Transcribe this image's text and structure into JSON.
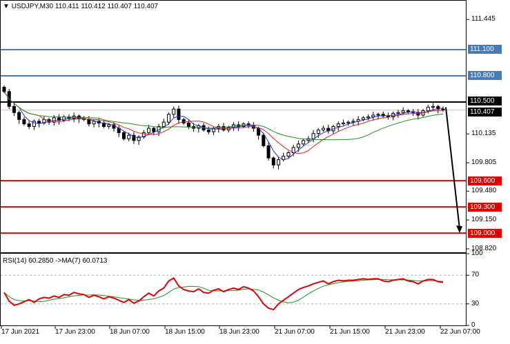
{
  "header": {
    "symbol": "USDJPY,M30",
    "ohlc": "110.411 110.412 110.407 110.407"
  },
  "rsi_header": {
    "text": "RSI(14) 60.2850   ->MA(7) 60.0713"
  },
  "price_axis": {
    "labels": [
      {
        "value": 111.445,
        "text": "111.445"
      },
      {
        "value": 110.135,
        "text": "110.135"
      },
      {
        "value": 109.805,
        "text": "109.805"
      },
      {
        "value": 109.48,
        "text": "109.480"
      },
      {
        "value": 109.15,
        "text": "109.150"
      },
      {
        "value": 108.82,
        "text": "108.820"
      }
    ],
    "tags": [
      {
        "value": 111.1,
        "text": "111.100",
        "color": "#4a7ab5"
      },
      {
        "value": 110.8,
        "text": "110.800",
        "color": "#4a7ab5"
      },
      {
        "value": 110.5,
        "text": "110.500",
        "color": "#000000"
      },
      {
        "value": 110.407,
        "text": "110.407",
        "color": "#000000"
      },
      {
        "value": 109.6,
        "text": "109.600",
        "color": "#e00000"
      },
      {
        "value": 109.3,
        "text": "109.300",
        "color": "#e00000"
      },
      {
        "value": 109.0,
        "text": "109.000",
        "color": "#e00000"
      }
    ]
  },
  "rsi_axis": {
    "labels": [
      {
        "value": 100,
        "text": "100"
      },
      {
        "value": 70,
        "text": "70"
      },
      {
        "value": 30,
        "text": "30"
      },
      {
        "value": 0,
        "text": "0"
      }
    ]
  },
  "time_axis": {
    "labels": [
      "17 Jun 2021",
      "17 Jun 23:00",
      "18 Jun 07:00",
      "18 Jun 15:00",
      "18 Jun 23:00",
      "21 Jun 07:00",
      "21 Jun 15:00",
      "21 Jun 23:00",
      "22 Jun 07:00"
    ]
  },
  "colors": {
    "resistance": "#4a7ab5",
    "pivot": "#000000",
    "support": "#e00000",
    "ma_fast": "#2030d0",
    "ma_mid": "#e02020",
    "ma_slow": "#209020",
    "rsi": "#e00000",
    "rsi_ma": "#209020"
  },
  "chart_data": {
    "type": "candlestick",
    "symbol": "USDJPY",
    "timeframe": "M30",
    "ylim": [
      108.78,
      111.66
    ],
    "levels": [
      111.1,
      110.8,
      110.5,
      109.6,
      109.3,
      109.0
    ],
    "current_price": 110.407,
    "close": [
      110.62,
      110.45,
      110.38,
      110.3,
      110.25,
      110.22,
      110.28,
      110.26,
      110.3,
      110.27,
      110.32,
      110.29,
      110.33,
      110.31,
      110.34,
      110.31,
      110.3,
      110.25,
      110.28,
      110.26,
      110.22,
      110.24,
      110.2,
      110.15,
      110.08,
      110.12,
      110.06,
      110.1,
      110.15,
      110.2,
      110.16,
      110.22,
      110.27,
      110.36,
      110.42,
      110.3,
      110.26,
      110.22,
      110.2,
      110.23,
      110.18,
      110.16,
      110.2,
      110.22,
      110.18,
      110.21,
      110.24,
      110.22,
      110.25,
      110.23,
      110.2,
      110.12,
      110.0,
      109.86,
      109.78,
      109.84,
      109.88,
      109.92,
      109.98,
      110.02,
      110.06,
      110.08,
      110.14,
      110.18,
      110.2,
      110.17,
      110.22,
      110.25,
      110.26,
      110.27,
      110.28,
      110.3,
      110.32,
      110.33,
      110.35,
      110.36,
      110.34,
      110.33,
      110.37,
      110.38,
      110.4,
      110.39,
      110.38,
      110.35,
      110.4,
      110.44,
      110.45,
      110.42,
      110.41
    ],
    "projection": {
      "from": 110.44,
      "to": 109.0
    },
    "rsi": {
      "ylim": [
        0,
        100
      ],
      "levels": [
        70,
        30
      ],
      "last": 60.285,
      "ma_period": 7,
      "ma_last": 60.0713,
      "values": [
        46,
        34,
        28,
        30,
        33,
        36,
        32,
        37,
        39,
        38,
        41,
        39,
        43,
        42,
        46,
        44,
        43,
        39,
        42,
        40,
        37,
        40,
        38,
        35,
        32,
        36,
        31,
        34,
        40,
        45,
        41,
        48,
        52,
        62,
        66,
        55,
        50,
        48,
        47,
        51,
        46,
        45,
        49,
        51,
        47,
        50,
        52,
        50,
        54,
        52,
        48,
        40,
        30,
        24,
        22,
        30,
        35,
        40,
        45,
        50,
        53,
        55,
        58,
        60,
        62,
        58,
        61,
        63,
        62,
        63,
        63,
        64,
        65,
        64,
        65,
        65,
        62,
        61,
        63,
        64,
        65,
        62,
        61,
        58,
        62,
        64,
        64,
        61,
        60
      ]
    }
  }
}
